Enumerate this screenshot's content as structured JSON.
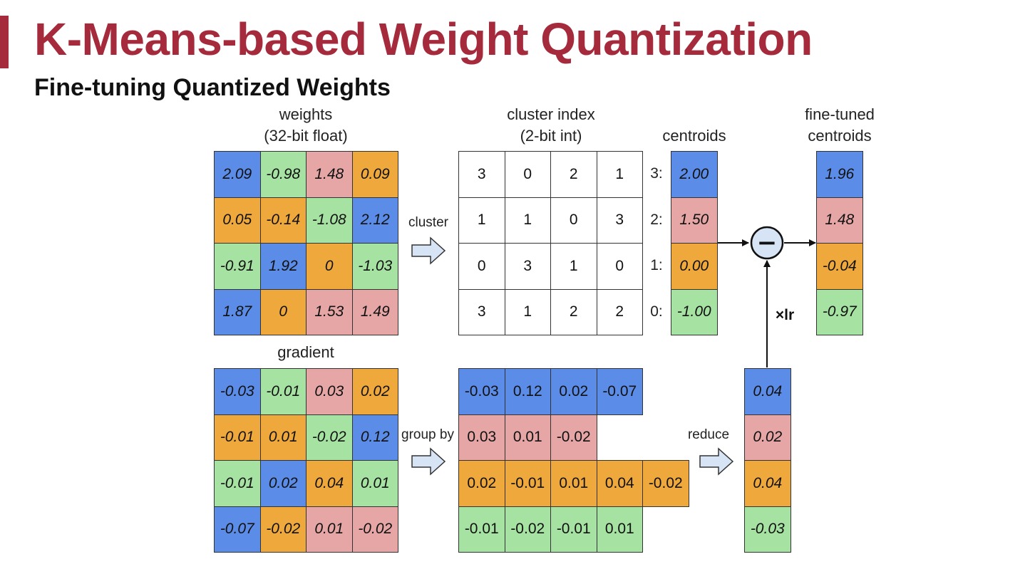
{
  "colors": {
    "accent": "#A52A3C",
    "blue": "#5B8DE8",
    "green": "#A6E3A3",
    "pink": "#E6A6A6",
    "orange": "#EFA83B"
  },
  "title": "K-Means-based Weight Quantization",
  "subtitle": "Fine-tuning Quantized Weights",
  "labels": {
    "weights_line1": "weights",
    "weights_line2": "(32-bit float)",
    "cluster_index_line1": "cluster index",
    "cluster_index_line2": "(2-bit int)",
    "centroids": "centroids",
    "finetuned_line1": "fine-tuned",
    "finetuned_line2": "centroids",
    "gradient": "gradient",
    "cluster_arrow": "cluster",
    "groupby_arrow": "group by",
    "reduce_arrow": "reduce",
    "xlr": "×lr",
    "minus_sign": "−"
  },
  "weights": [
    [
      "2.09",
      "-0.98",
      "1.48",
      "0.09"
    ],
    [
      "0.05",
      "-0.14",
      "-1.08",
      "2.12"
    ],
    [
      "-0.91",
      "1.92",
      "0",
      "-1.03"
    ],
    [
      "1.87",
      "0",
      "1.53",
      "1.49"
    ]
  ],
  "cluster_index": [
    [
      "3",
      "0",
      "2",
      "1"
    ],
    [
      "1",
      "1",
      "0",
      "3"
    ],
    [
      "0",
      "3",
      "1",
      "0"
    ],
    [
      "3",
      "1",
      "2",
      "2"
    ]
  ],
  "centroids": [
    {
      "label": "3:",
      "value": "2.00"
    },
    {
      "label": "2:",
      "value": "1.50"
    },
    {
      "label": "1:",
      "value": "0.00"
    },
    {
      "label": "0:",
      "value": "-1.00"
    }
  ],
  "finetuned": [
    "1.96",
    "1.48",
    "-0.04",
    "-0.97"
  ],
  "gradient": [
    [
      "-0.03",
      "-0.01",
      "0.03",
      "0.02"
    ],
    [
      "-0.01",
      "0.01",
      "-0.02",
      "0.12"
    ],
    [
      "-0.01",
      "0.02",
      "0.04",
      "0.01"
    ],
    [
      "-0.07",
      "-0.02",
      "0.01",
      "-0.02"
    ]
  ],
  "grouped": [
    [
      "-0.03",
      "0.12",
      "0.02",
      "-0.07"
    ],
    [
      "0.03",
      "0.01",
      "-0.02"
    ],
    [
      "0.02",
      "-0.01",
      "0.01",
      "0.04",
      "-0.02"
    ],
    [
      "-0.01",
      "-0.02",
      "-0.01",
      "0.01"
    ]
  ],
  "reduced": [
    "0.04",
    "0.02",
    "0.04",
    "-0.03"
  ]
}
